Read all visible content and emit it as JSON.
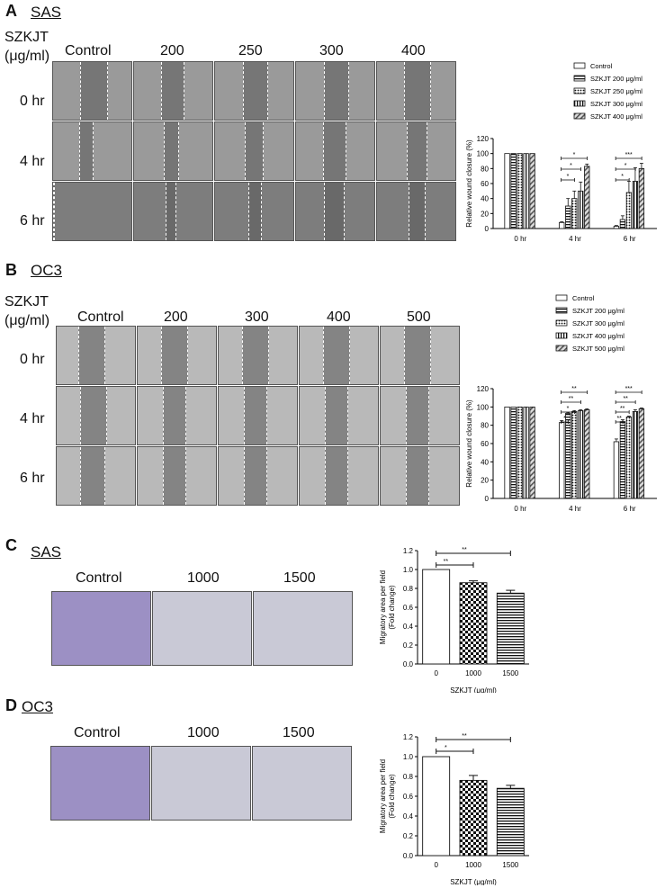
{
  "panelA": {
    "label": "A",
    "title": "SAS",
    "unit_top": "SZKJT",
    "unit_bottom": "(μg/ml)",
    "columns": [
      "Control",
      "200",
      "250",
      "300",
      "400"
    ],
    "rows": [
      "0 hr",
      "4 hr",
      "6 hr"
    ]
  },
  "panelB": {
    "label": "B",
    "title": "OC3",
    "unit_top": "SZKJT",
    "unit_bottom": "(μg/ml)",
    "columns": [
      "Control",
      "200",
      "300",
      "400",
      "500"
    ],
    "rows": [
      "0 hr",
      "4 hr",
      "6 hr"
    ]
  },
  "panelC": {
    "label": "C",
    "title": "SAS",
    "columns": [
      "Control",
      "1000",
      "1500"
    ]
  },
  "panelD": {
    "label": "D",
    "title": "OC3",
    "columns": [
      "Control",
      "1000",
      "1500"
    ]
  },
  "chart_data": [
    {
      "id": "A",
      "type": "bar",
      "ylabel": "Relative wound closure (%)",
      "ylim": [
        0,
        120
      ],
      "yticks": [
        "0",
        "20",
        "40",
        "60",
        "80",
        "100",
        "120"
      ],
      "categories": [
        "0 hr",
        "4 hr",
        "6 hr"
      ],
      "series": [
        {
          "name": "Control",
          "values": [
            100,
            8,
            3
          ],
          "err": [
            0,
            1,
            1
          ],
          "pattern": "white"
        },
        {
          "name": "SZKJT 200 μg/ml",
          "values": [
            100,
            30,
            12
          ],
          "err": [
            0,
            10,
            5
          ],
          "pattern": "hstripe"
        },
        {
          "name": "SZKJT 250 μg/ml",
          "values": [
            100,
            40,
            48
          ],
          "err": [
            0,
            10,
            15
          ],
          "pattern": "dots"
        },
        {
          "name": "SZKJT 300 μg/ml",
          "values": [
            100,
            50,
            63
          ],
          "err": [
            0,
            12,
            18
          ],
          "pattern": "vstripe"
        },
        {
          "name": "SZKJT 400 μg/ml",
          "values": [
            100,
            83,
            80
          ],
          "err": [
            0,
            3,
            7
          ],
          "pattern": "diag"
        }
      ],
      "annotations": [
        "*",
        "*",
        "*",
        "***",
        "*",
        "*"
      ],
      "legend": "top-right"
    },
    {
      "id": "B",
      "type": "bar",
      "ylabel": "Relative wound closure (%)",
      "ylim": [
        0,
        120
      ],
      "yticks": [
        "0",
        "20",
        "40",
        "60",
        "80",
        "100",
        "120"
      ],
      "categories": [
        "0 hr",
        "4 hr",
        "6 hr"
      ],
      "series": [
        {
          "name": "Control",
          "values": [
            100,
            83,
            62
          ],
          "err": [
            0,
            2,
            3
          ],
          "pattern": "white"
        },
        {
          "name": "SZKJT 200 μg/ml",
          "values": [
            100,
            93,
            84
          ],
          "err": [
            0,
            1,
            2
          ],
          "pattern": "hstripe"
        },
        {
          "name": "SZKJT 300 μg/ml",
          "values": [
            100,
            95,
            89
          ],
          "err": [
            0,
            1,
            1
          ],
          "pattern": "dots"
        },
        {
          "name": "SZKJT 400 μg/ml",
          "values": [
            100,
            96,
            95
          ],
          "err": [
            0,
            1,
            2
          ],
          "pattern": "vstripe"
        },
        {
          "name": "SZKJT 500 μg/ml",
          "values": [
            100,
            97,
            98
          ],
          "err": [
            0,
            1,
            1
          ],
          "pattern": "diag"
        }
      ],
      "annotations": [
        "**",
        "**",
        "*",
        "*",
        "***",
        "**",
        "**",
        "**"
      ],
      "legend": "top-right"
    },
    {
      "id": "C",
      "type": "bar",
      "ylabel": "Migratory area per field",
      "ylabel2": "(Fold change)",
      "xlabel": "SZKJT (μg/ml)",
      "ylim": [
        0,
        1.2
      ],
      "yticks": [
        "0.0",
        "0.2",
        "0.4",
        "0.6",
        "0.8",
        "1.0",
        "1.2"
      ],
      "categories": [
        "0",
        "1000",
        "1500"
      ],
      "values": [
        1.0,
        0.86,
        0.75
      ],
      "err": [
        0,
        0.02,
        0.03
      ],
      "patterns": [
        "white",
        "check",
        "hstripe"
      ],
      "annotations": [
        "**",
        "**"
      ]
    },
    {
      "id": "D",
      "type": "bar",
      "ylabel": "Migratory area per field",
      "ylabel2": "(Fold change)",
      "xlabel": "SZKJT (μg/ml)",
      "ylim": [
        0,
        1.2
      ],
      "yticks": [
        "0.0",
        "0.2",
        "0.4",
        "0.6",
        "0.8",
        "1.0",
        "1.2"
      ],
      "categories": [
        "0",
        "1000",
        "1500"
      ],
      "values": [
        1.0,
        0.76,
        0.68
      ],
      "err": [
        0,
        0.05,
        0.03
      ],
      "patterns": [
        "white",
        "check",
        "hstripe"
      ],
      "annotations": [
        "**",
        "*"
      ]
    }
  ]
}
